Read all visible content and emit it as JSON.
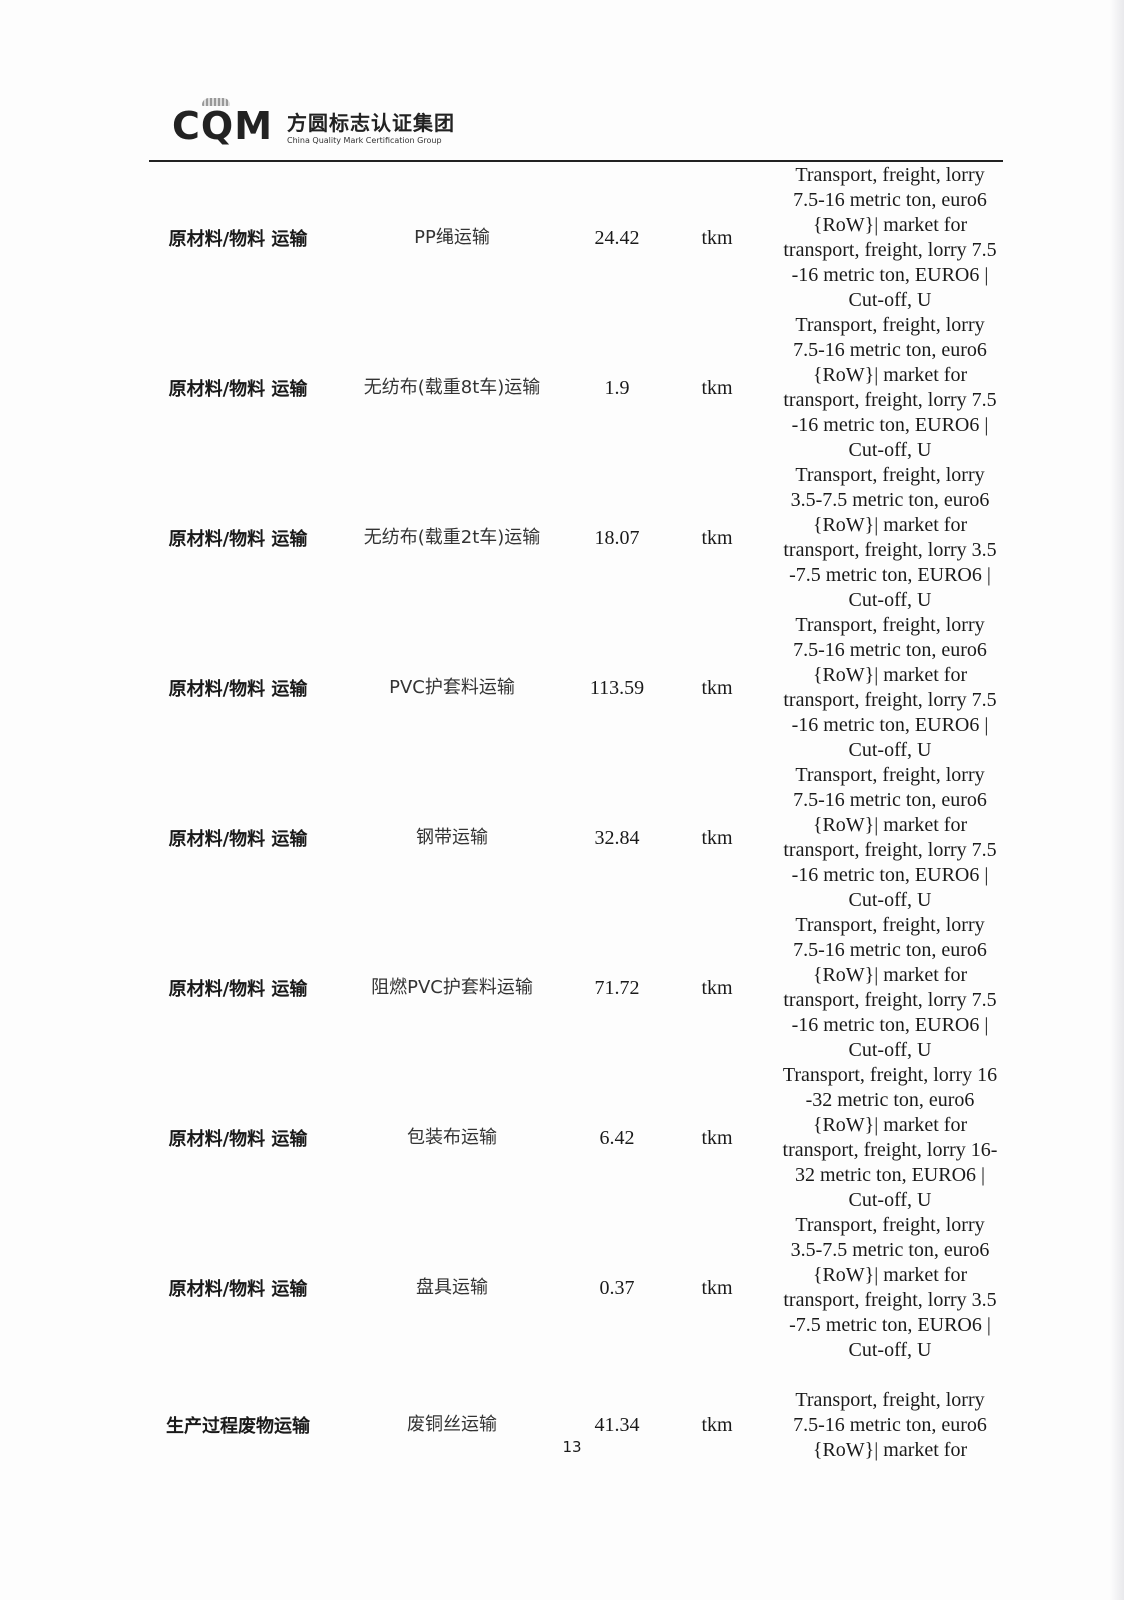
{
  "header": {
    "logo_mark": "CQM",
    "logo_cn": "方圆标志认证集团",
    "logo_en": "China Quality Mark Certification Group"
  },
  "rows": [
    {
      "category": "原材料/物料 运输",
      "item": "PP绳运输",
      "value": "24.42",
      "unit": "tkm",
      "description": "Transport, freight, lorry\n7.5-16 metric ton, euro6\n{RoW}| market for\ntransport, freight, lorry 7.5\n-16 metric ton, EURO6 |\nCut-off, U"
    },
    {
      "category": "原材料/物料 运输",
      "item": "无纺布(载重8t车)运输",
      "value": "1.9",
      "unit": "tkm",
      "description": "Transport, freight, lorry\n7.5-16 metric ton, euro6\n{RoW}| market for\ntransport, freight, lorry 7.5\n-16 metric ton, EURO6 |\nCut-off, U"
    },
    {
      "category": "原材料/物料 运输",
      "item": "无纺布(载重2t车)运输",
      "value": "18.07",
      "unit": "tkm",
      "description": "Transport, freight, lorry\n3.5-7.5 metric ton, euro6\n{RoW}| market for\ntransport, freight, lorry 3.5\n-7.5 metric ton, EURO6 |\nCut-off, U"
    },
    {
      "category": "原材料/物料 运输",
      "item": "PVC护套料运输",
      "value": "113.59",
      "unit": "tkm",
      "description": "Transport, freight, lorry\n7.5-16 metric ton, euro6\n{RoW}| market for\ntransport, freight, lorry 7.5\n-16 metric ton, EURO6 |\nCut-off, U"
    },
    {
      "category": "原材料/物料 运输",
      "item": "钢带运输",
      "value": "32.84",
      "unit": "tkm",
      "description": "Transport, freight, lorry\n7.5-16 metric ton, euro6\n{RoW}| market for\ntransport, freight, lorry 7.5\n-16 metric ton, EURO6 |\nCut-off, U"
    },
    {
      "category": "原材料/物料 运输",
      "item": "阻燃PVC护套料运输",
      "value": "71.72",
      "unit": "tkm",
      "description": "Transport, freight, lorry\n7.5-16 metric ton, euro6\n{RoW}| market for\ntransport, freight, lorry 7.5\n-16 metric ton, EURO6 |\nCut-off, U"
    },
    {
      "category": "原材料/物料 运输",
      "item": "包装布运输",
      "value": "6.42",
      "unit": "tkm",
      "description": "Transport, freight, lorry 16\n-32 metric ton, euro6\n{RoW}| market for\ntransport, freight, lorry 16-\n32 metric ton, EURO6 |\nCut-off, U"
    },
    {
      "category": "原材料/物料 运输",
      "item": "盘具运输",
      "value": "0.37",
      "unit": "tkm",
      "description": "Transport, freight, lorry\n3.5-7.5 metric ton, euro6\n{RoW}| market for\ntransport, freight, lorry 3.5\n-7.5 metric ton, EURO6 |\nCut-off, U"
    },
    {
      "category": "生产过程废物运输",
      "item": "废铜丝运输",
      "value": "41.34",
      "unit": "tkm",
      "description": "Transport, freight, lorry\n7.5-16 metric ton, euro6\n{RoW}| market for"
    }
  ],
  "page_number": "13"
}
